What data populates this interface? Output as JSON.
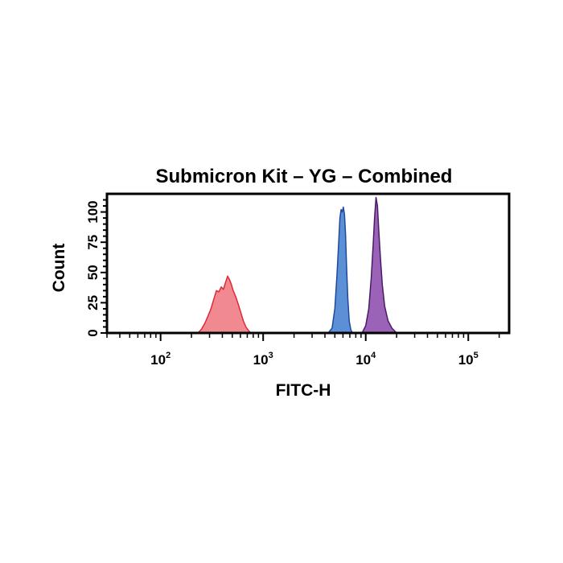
{
  "chart_data": {
    "type": "area",
    "title": "Submicron Kit – YG – Combined",
    "xlabel": "FITC-H",
    "ylabel": "Count",
    "xscale": "log",
    "xlim": [
      30,
      250000
    ],
    "ylim": [
      0,
      115
    ],
    "x_ticks": [
      {
        "base": "10",
        "exp": "2",
        "value": 100
      },
      {
        "base": "10",
        "exp": "3",
        "value": 1000
      },
      {
        "base": "10",
        "exp": "4",
        "value": 10000
      },
      {
        "base": "10",
        "exp": "5",
        "value": 100000
      }
    ],
    "y_ticks": [
      0,
      25,
      50,
      75,
      100
    ],
    "grid": false,
    "colors": {
      "red_fill": "#f08a90",
      "red_stroke": "#e0283a",
      "blue_fill": "#5b8fd6",
      "blue_stroke": "#1d4a9a",
      "purple_fill": "#9a63b8",
      "purple_stroke": "#4a1a66"
    },
    "series": [
      {
        "color": "red",
        "x": [
          230,
          250,
          270,
          290,
          310,
          330,
          350,
          370,
          390,
          410,
          430,
          450,
          470,
          490,
          510,
          540,
          570,
          600,
          640,
          680,
          720,
          760
        ],
        "y": [
          0,
          3,
          8,
          14,
          20,
          28,
          35,
          34,
          38,
          36,
          42,
          47,
          44,
          40,
          35,
          30,
          24,
          18,
          10,
          5,
          2,
          0
        ]
      },
      {
        "color": "blue",
        "x": [
          4300,
          4700,
          5000,
          5250,
          5450,
          5600,
          5750,
          5900,
          6050,
          6200,
          6350,
          6500,
          6700,
          6900,
          7150,
          7400
        ],
        "y": [
          0,
          4,
          20,
          48,
          75,
          95,
          102,
          100,
          104,
          98,
          82,
          55,
          28,
          10,
          3,
          0
        ]
      },
      {
        "color": "purple",
        "x": [
          9200,
          10000,
          10700,
          11300,
          11800,
          12200,
          12600,
          13000,
          13400,
          13900,
          14500,
          15300,
          16500,
          18000,
          20000
        ],
        "y": [
          0,
          6,
          20,
          45,
          72,
          95,
          112,
          105,
          85,
          62,
          40,
          22,
          10,
          4,
          0
        ]
      }
    ]
  }
}
